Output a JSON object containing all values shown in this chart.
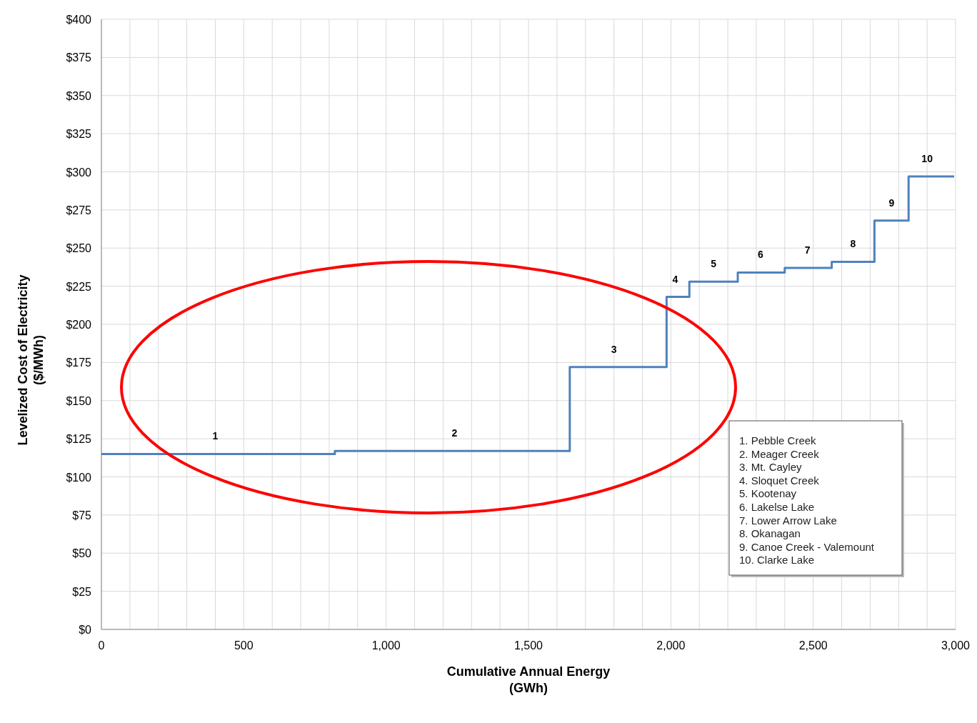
{
  "chart_data": {
    "type": "step",
    "xlabel": "Cumulative Annual Energy\n(GWh)",
    "ylabel": "Levelized Cost of Electricity\n($/MWh)",
    "series": [
      {
        "color": "#4f81bd",
        "x": [
          0,
          820,
          1645,
          1985,
          2065,
          2235,
          2400,
          2565,
          2715,
          2835,
          2995
        ],
        "values": [
          115,
          117,
          172,
          218,
          228,
          234,
          237,
          241,
          268,
          297,
          297
        ]
      }
    ],
    "xlim": [
      0,
      3000
    ],
    "xticks": [
      0,
      {
        "value": 100,
        "label": null
      },
      {
        "value": 200,
        "label": null
      },
      {
        "value": 300,
        "label": null
      },
      {
        "value": 400,
        "label": null
      },
      {
        "value": 500,
        "label": "500"
      },
      {
        "value": 600,
        "label": null
      },
      {
        "value": 700,
        "label": null
      },
      {
        "value": 800,
        "label": null
      },
      {
        "value": 900,
        "label": null
      },
      {
        "value": 1000,
        "label": "1,000"
      },
      {
        "value": 1100,
        "label": null
      },
      {
        "value": 1200,
        "label": null
      },
      {
        "value": 1300,
        "label": null
      },
      {
        "value": 1400,
        "label": null
      },
      {
        "value": 1500,
        "label": "1,500"
      },
      {
        "value": 1600,
        "label": null
      },
      {
        "value": 1700,
        "label": null
      },
      {
        "value": 1800,
        "label": null
      },
      {
        "value": 1900,
        "label": null
      },
      {
        "value": 2000,
        "label": "2,000"
      },
      {
        "value": 2100,
        "label": null
      },
      {
        "value": 2200,
        "label": null
      },
      {
        "value": 2300,
        "label": null
      },
      {
        "value": 2400,
        "label": null
      },
      {
        "value": 2500,
        "label": "2,500"
      },
      {
        "value": 2600,
        "label": null
      },
      {
        "value": 2700,
        "label": null
      },
      {
        "value": 2800,
        "label": null
      },
      {
        "value": 2900,
        "label": null
      },
      {
        "value": 3000,
        "label": "3,000"
      }
    ],
    "ylim": [
      0,
      400
    ],
    "yticks": [
      {
        "value": 0,
        "label": "$0"
      },
      {
        "value": 25,
        "label": "$25"
      },
      {
        "value": 50,
        "label": "$50"
      },
      {
        "value": 75,
        "label": "$75"
      },
      {
        "value": 100,
        "label": "$100"
      },
      {
        "value": 125,
        "label": "$125"
      },
      {
        "value": 150,
        "label": "$150"
      },
      {
        "value": 175,
        "label": "$175"
      },
      {
        "value": 200,
        "label": "$200"
      },
      {
        "value": 225,
        "label": "$225"
      },
      {
        "value": 250,
        "label": "$250"
      },
      {
        "value": 275,
        "label": "$275"
      },
      {
        "value": 300,
        "label": "$300"
      },
      {
        "value": 325,
        "label": "$325"
      },
      {
        "value": 350,
        "label": "$350"
      },
      {
        "value": 375,
        "label": "$375"
      },
      {
        "value": 400,
        "label": "$400"
      }
    ],
    "grid": true,
    "annotations": [
      {
        "text": "1",
        "x": 400,
        "y": 115
      },
      {
        "text": "2",
        "x": 1240,
        "y": 117
      },
      {
        "text": "3",
        "x": 1800,
        "y": 172
      },
      {
        "text": "4",
        "x": 2015,
        "y": 218
      },
      {
        "text": "5",
        "x": 2150,
        "y": 228
      },
      {
        "text": "6",
        "x": 2315,
        "y": 234
      },
      {
        "text": "7",
        "x": 2480,
        "y": 237
      },
      {
        "text": "8",
        "x": 2640,
        "y": 241
      },
      {
        "text": "9",
        "x": 2775,
        "y": 268
      },
      {
        "text": "10",
        "x": 2900,
        "y": 297
      },
      "1. Pebble Creek",
      "2. Meager Creek",
      "3. Mt. Cayley",
      "4. Sloquet Creek",
      "5. Kootenay",
      "6. Lakelse Lake",
      "7. Lower Arrow Lake",
      "8. Okanagan",
      "9. Canoe Creek - Valemount",
      "10. Clarke Lake"
    ]
  }
}
